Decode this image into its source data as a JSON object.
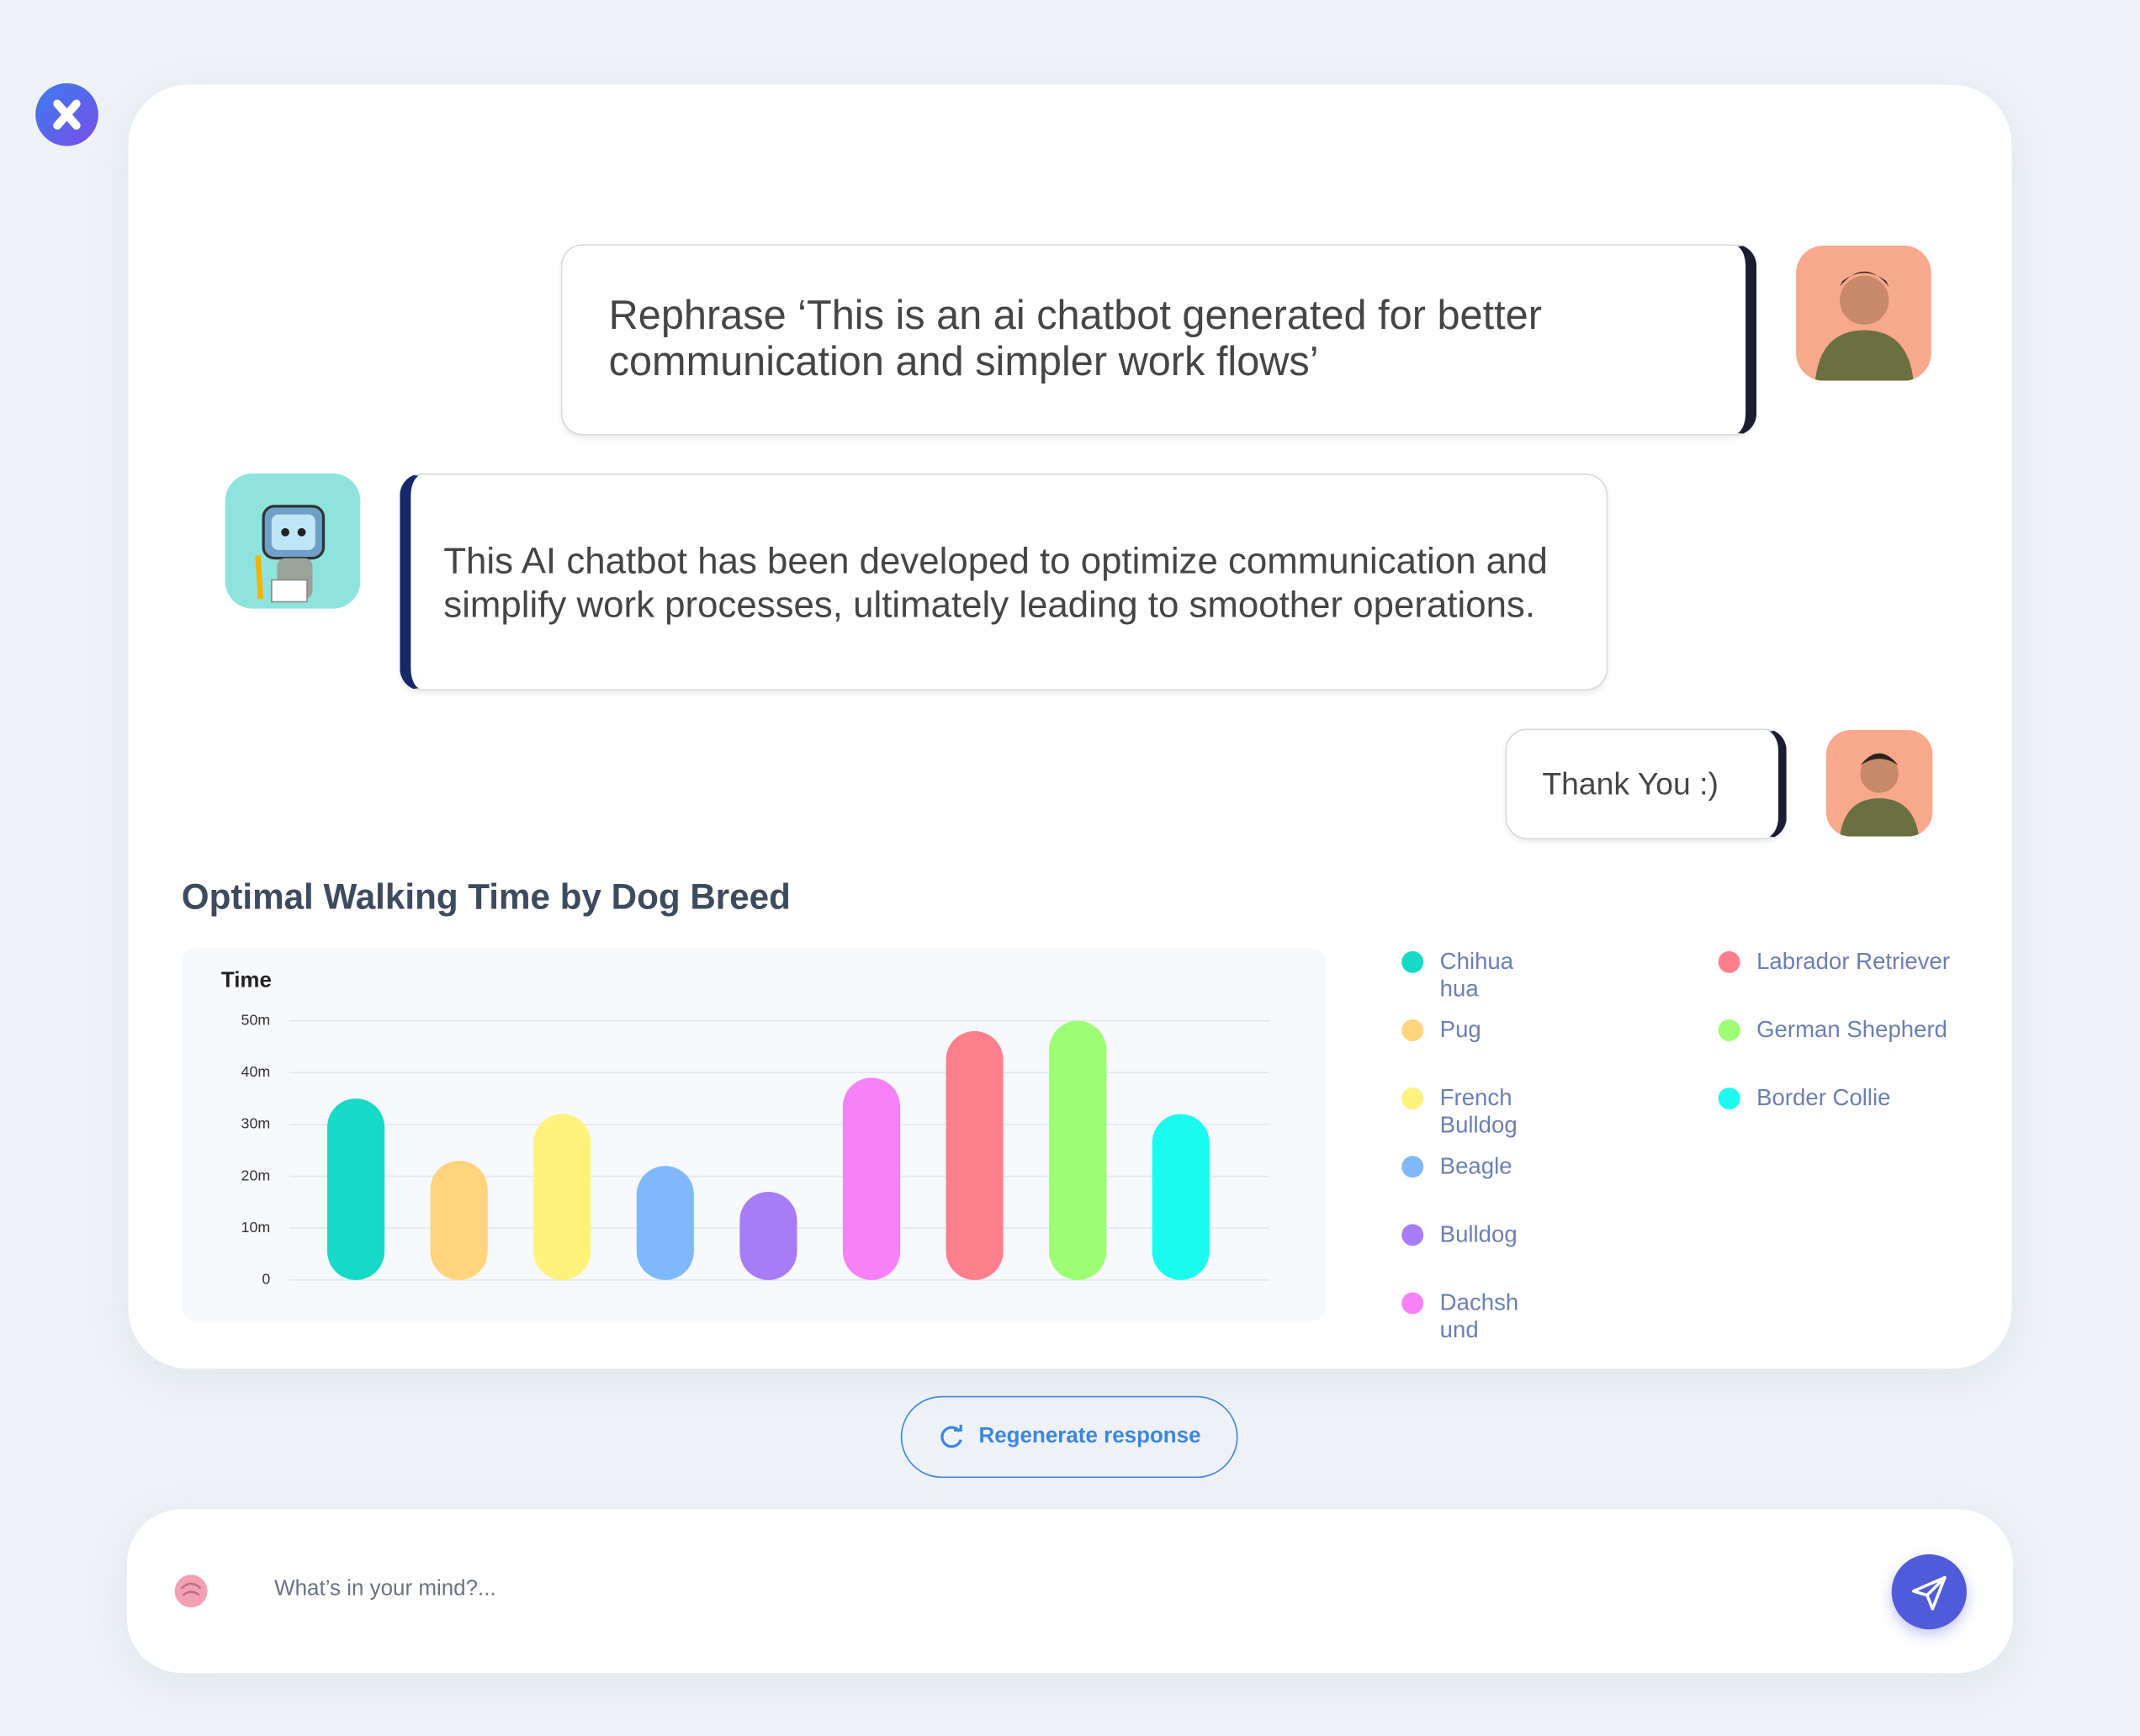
{
  "app": {
    "messages": [
      {
        "role": "user",
        "text": "Rephrase ‘This is an ai chatbot generated for better communication and simpler work flows’"
      },
      {
        "role": "bot",
        "text": "This AI chatbot has been developed to optimize communication and simplify work processes, ultimately leading to smoother operations."
      },
      {
        "role": "user",
        "text": "Thank You :)"
      }
    ],
    "regenerate_label": "Regenerate response",
    "input_placeholder": "What’s in your mind?..."
  },
  "chart_data": {
    "type": "bar",
    "title": "Optimal Walking Time by Dog Breed",
    "y_label": "Time",
    "categories": [
      "Chihuahua",
      "Pug",
      "French Bulldog",
      "Beagle",
      "Bulldog",
      "Dachshund",
      "Labrador Retriever",
      "German Shepherd",
      "Border Collie"
    ],
    "values": [
      35,
      23,
      32,
      22,
      17,
      39,
      48,
      50,
      32
    ],
    "colors": [
      "#17d9c8",
      "#ffd47d",
      "#fff27c",
      "#80b9fb",
      "#a87cf6",
      "#f582f6",
      "#fe7f8c",
      "#9cff74",
      "#1cfcee"
    ],
    "ylim": [
      0,
      50
    ],
    "yticks": [
      0,
      {
        "value": 10,
        "label": "10m"
      },
      {
        "value": 20,
        "label": "20m"
      },
      {
        "value": 30,
        "label": "30m"
      },
      {
        "value": 40,
        "label": "40m"
      },
      {
        "value": 50,
        "label": "50m"
      }
    ],
    "grid": true
  }
}
